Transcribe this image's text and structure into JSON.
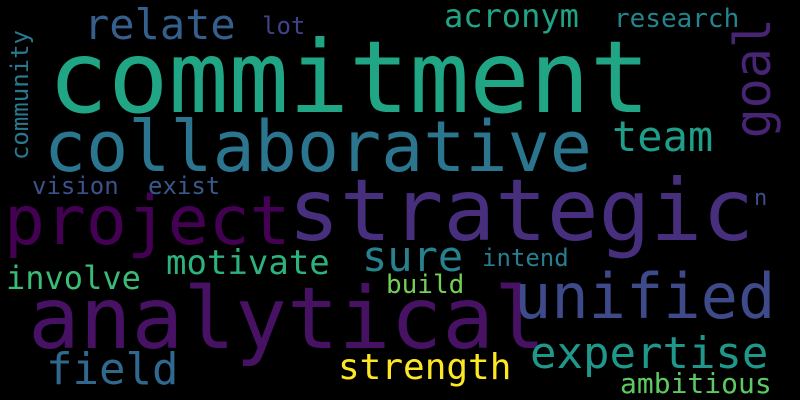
{
  "words": [
    {
      "text": "commitment",
      "color": "#21a685",
      "weight": 1.0
    },
    {
      "text": "strategic",
      "color": "#472f7d",
      "weight": 0.85
    },
    {
      "text": "analytical",
      "color": "#471164",
      "weight": 0.85
    },
    {
      "text": "collaborative",
      "color": "#2b758e",
      "weight": 0.72
    },
    {
      "text": "project",
      "color": "#440154",
      "weight": 0.65
    },
    {
      "text": "unified",
      "color": "#3e4a89",
      "weight": 0.6
    },
    {
      "text": "expertise",
      "color": "#1f988b",
      "weight": 0.48
    },
    {
      "text": "field",
      "color": "#30688e",
      "weight": 0.45
    },
    {
      "text": "relate",
      "color": "#355f8d",
      "weight": 0.42
    },
    {
      "text": "goal",
      "color": "#482475",
      "weight": 0.45
    },
    {
      "text": "team",
      "color": "#1f9e89",
      "weight": 0.42
    },
    {
      "text": "sure",
      "color": "#26828e",
      "weight": 0.4
    },
    {
      "text": "strength",
      "color": "#fde725",
      "weight": 0.35
    },
    {
      "text": "motivate",
      "color": "#2db27d",
      "weight": 0.34
    },
    {
      "text": "acronym",
      "color": "#20a386",
      "weight": 0.32
    },
    {
      "text": "involve",
      "color": "#3bbb75",
      "weight": 0.32
    },
    {
      "text": "ambitious",
      "color": "#5ec962",
      "weight": 0.28
    },
    {
      "text": "research",
      "color": "#25848e",
      "weight": 0.26
    },
    {
      "text": "build",
      "color": "#73d055",
      "weight": 0.26
    },
    {
      "text": "intend",
      "color": "#287d8e",
      "weight": 0.24
    },
    {
      "text": "community",
      "color": "#2a788e",
      "weight": 0.24
    },
    {
      "text": "lot",
      "color": "#404387",
      "weight": 0.24
    },
    {
      "text": "vision",
      "color": "#3b528b",
      "weight": 0.24
    },
    {
      "text": "exist",
      "color": "#38598c",
      "weight": 0.24
    },
    {
      "text": "n",
      "color": "#3d4e8a",
      "weight": 0.2
    }
  ]
}
